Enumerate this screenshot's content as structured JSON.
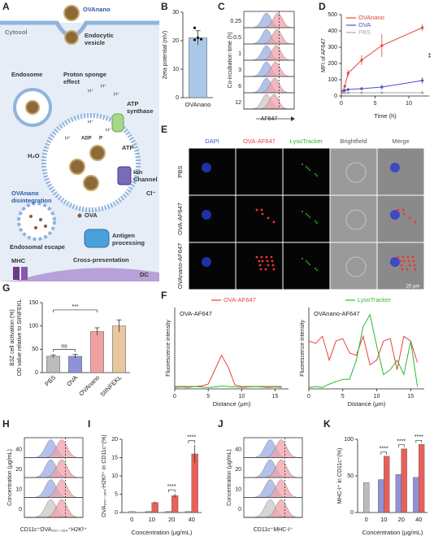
{
  "figure": {
    "letters": [
      "A",
      "B",
      "C",
      "D",
      "E",
      "F",
      "G",
      "H",
      "I",
      "J",
      "K"
    ],
    "diagram": {
      "ovanano": "OVAnano",
      "vesicle": [
        "Endocytic",
        "vesicle"
      ],
      "cytosol": "Cytosol",
      "endosome": "Endosome",
      "proton": [
        "Proton sponge",
        "effect"
      ],
      "hplus": "H⁺",
      "atp_synthase": [
        "ATP",
        "synthase"
      ],
      "adp": "ADP",
      "p": "P",
      "atp": "ATP",
      "h2o": "H₂O",
      "ion": [
        "Ion",
        "Channel"
      ],
      "cl": "Cl⁻",
      "disintegration": [
        "OVAnano",
        "disintegration"
      ],
      "ova": "OVA",
      "escape": "Endosomal escape",
      "processing": [
        "Antigen",
        "processing"
      ],
      "cross": "Cross-presentation",
      "mhc": "MHC",
      "dc": "DC"
    },
    "C": {
      "ylabel": "Co-incubation time (h)",
      "rows": [
        "0.25",
        "0.5",
        "1",
        "3",
        "6",
        "12"
      ],
      "xlabel": "AF647"
    },
    "E": {
      "columns": [
        "DAPI",
        "OVA-AF647",
        "LysoTracker",
        "Brightfield",
        "Merge"
      ],
      "rows": [
        "PBS",
        "OVA-AF647",
        "OVAnano-AF647"
      ],
      "scale": "20 μm"
    },
    "H": {
      "ylabel": "Concentration (μg/mL)",
      "rows": [
        "40",
        "20",
        "10",
        "0"
      ],
      "xlabel": "CD11c⁺OVA₂₅₇₋₂₆₄⁺H2Kᵇ⁺"
    },
    "J": {
      "ylabel": "Concentration (μg/mL)",
      "rows": [
        "40",
        "20",
        "10",
        "0"
      ],
      "xlabel": "CD11c⁺MHC-I⁺"
    }
  },
  "chart_data": [
    {
      "type": "bar",
      "ylabel": "Zeta potential (mV)",
      "categories": [
        "OVAnano"
      ],
      "values": [
        21
      ],
      "errors": [
        2.5
      ],
      "points": [
        24.5,
        21,
        20.5,
        20.3
      ],
      "color": "#a9c8e8",
      "ylim": [
        0,
        30
      ],
      "yticks": [
        0,
        10,
        20,
        30
      ]
    },
    {
      "type": "line",
      "ylabel": "MFI of AF647",
      "xlabel": "Time (h)",
      "x": [
        0.25,
        0.5,
        1,
        3,
        6,
        12
      ],
      "markers": true,
      "legend": "upper left",
      "series": [
        {
          "name": "OVAnano",
          "color": "#e8413c",
          "values": [
            30,
            60,
            140,
            220,
            310,
            420
          ],
          "errors": [
            5,
            10,
            20,
            30,
            70,
            20
          ]
        },
        {
          "name": "OVA",
          "color": "#4a52c8",
          "values": [
            25,
            35,
            40,
            45,
            55,
            95
          ],
          "errors": [
            5,
            5,
            8,
            10,
            15,
            20
          ]
        },
        {
          "name": "PBS",
          "color": "#aaaaaa",
          "values": [
            20,
            20,
            20,
            20,
            20,
            20
          ]
        }
      ],
      "xlim": [
        0,
        13
      ],
      "xticks": [
        0,
        5,
        10
      ],
      "ylim": [
        0,
        500
      ],
      "yticks": [
        0,
        100,
        200,
        300,
        400,
        500
      ],
      "annotations": [
        "**"
      ]
    },
    {
      "type": "line",
      "title": "OVA-AF647",
      "ylabel": "Fluorescence intensity",
      "xlabel": "Distance (μm)",
      "legend": "top",
      "x": [
        0,
        1,
        2,
        3,
        4,
        5,
        6,
        7,
        8,
        9,
        10,
        11,
        12,
        13,
        14,
        15,
        16
      ],
      "series": [
        {
          "name": "OVA-AF647",
          "color": "#e8413c",
          "values": [
            5,
            5,
            5,
            5,
            6,
            10,
            40,
            70,
            45,
            8,
            5,
            5,
            5,
            5,
            5,
            5,
            5
          ]
        },
        {
          "name": "LysoTracker",
          "color": "#2eb82e",
          "values": [
            3,
            4,
            3,
            5,
            4,
            3,
            4,
            6,
            5,
            4,
            3,
            4,
            5,
            4,
            3,
            4,
            3
          ]
        }
      ],
      "xlim": [
        0,
        17
      ],
      "xticks": [
        0,
        5,
        10,
        15
      ],
      "ylim": [
        0,
        170
      ]
    },
    {
      "type": "line",
      "title": "OVAnano-AF647",
      "ylabel": "Fluorescence intensity",
      "xlabel": "Distance (μm)",
      "x": [
        0,
        1,
        2,
        3,
        4,
        5,
        6,
        7,
        8,
        9,
        10,
        11,
        12,
        13,
        14,
        15,
        16
      ],
      "series": [
        {
          "color": "#e8413c",
          "values": [
            100,
            95,
            110,
            60,
            100,
            105,
            75,
            70,
            110,
            50,
            60,
            100,
            105,
            40,
            110,
            100,
            55
          ]
        },
        {
          "color": "#2eb82e",
          "values": [
            3,
            5,
            3,
            10,
            15,
            20,
            20,
            60,
            130,
            155,
            90,
            30,
            40,
            60,
            30,
            100,
            5
          ]
        }
      ],
      "xlim": [
        0,
        17
      ],
      "xticks": [
        0,
        5,
        10,
        15
      ],
      "ylim": [
        0,
        170
      ]
    },
    {
      "type": "bar",
      "ylabel": [
        "B3Z cell activation (%)",
        "OD value relative to SIINFEKL"
      ],
      "categories": [
        "PBS",
        "OVA",
        "OVAnano",
        "SIINFEKL"
      ],
      "values": [
        35,
        35,
        88,
        100
      ],
      "errors": [
        3,
        4,
        8,
        13
      ],
      "colors": [
        "#bbbbbb",
        "#8d93d6",
        "#f0a0a0",
        "#e8c8a0"
      ],
      "ylim": [
        0,
        150
      ],
      "yticks": [
        0,
        50,
        100,
        150
      ],
      "annotations": [
        "ns",
        "***"
      ]
    },
    {
      "type": "grouped-bar",
      "ylabel": "OVA₂₅₇₋₂₆₄-H2Kᵇ⁺ in CD11c⁺(%)",
      "xlabel": "Concentration (μg/mL)",
      "categories": [
        "0",
        "10",
        "20",
        "40"
      ],
      "series": [
        {
          "color": "#bbbbbb",
          "values": [
            0.3,
            null,
            null,
            null
          ]
        },
        {
          "color": "#8d93d6",
          "values": [
            null,
            0.3,
            0.3,
            0.3
          ]
        },
        {
          "color": "#e8605a",
          "values": [
            null,
            2.7,
            4.6,
            16
          ],
          "errors": [
            null,
            0.3,
            0.5,
            2.5
          ]
        }
      ],
      "ylim": [
        0,
        20
      ],
      "yticks": [
        0,
        5,
        10,
        15,
        20
      ],
      "annotations": [
        "****",
        "****"
      ]
    },
    {
      "type": "grouped-bar",
      "ylabel": "MHC-I⁺ in CD11c⁺(%)",
      "xlabel": "Concentration (μg/mL)",
      "categories": [
        "0",
        "10",
        "20",
        "40"
      ],
      "series": [
        {
          "color": "#bbbbbb",
          "values": [
            41,
            null,
            null,
            null
          ]
        },
        {
          "color": "#8d93d6",
          "values": [
            null,
            45,
            52,
            48
          ]
        },
        {
          "color": "#e8605a",
          "values": [
            null,
            77,
            87,
            93
          ]
        }
      ],
      "ylim": [
        0,
        100
      ],
      "yticks": [
        0,
        50,
        100
      ],
      "annotations": [
        "****",
        "****",
        "****"
      ]
    }
  ]
}
